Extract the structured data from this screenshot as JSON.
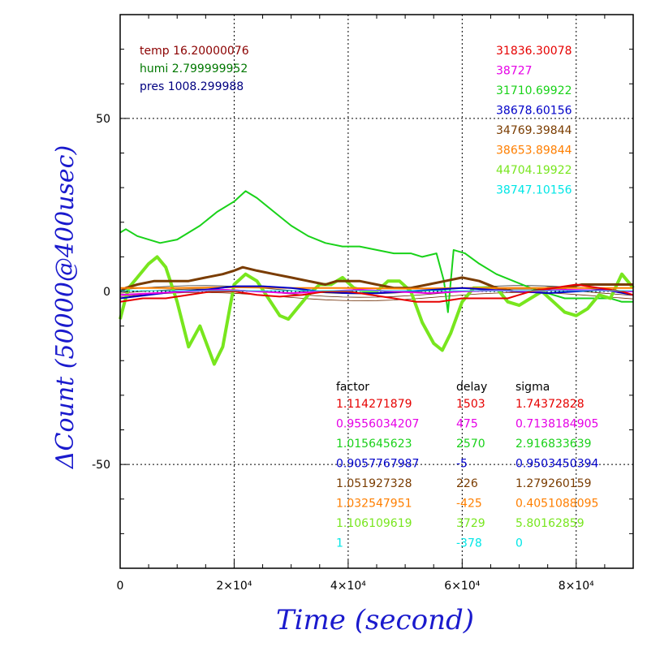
{
  "colors": {
    "red": "#e60000",
    "magenta": "#e600e6",
    "green": "#19d219",
    "blue": "#0000c8",
    "brown": "#7a3c00",
    "orange": "#ff7f00",
    "lime": "#78e61e",
    "cyan": "#00e6e6",
    "darkred": "#8b0000",
    "darkgreen": "#007800",
    "navy": "#000080",
    "axis_title": "#1a1acd"
  },
  "env": [
    {
      "label": "temp 16.20000076",
      "color": "#8b0000"
    },
    {
      "label": "humi 2.799999952",
      "color": "#007800"
    },
    {
      "label": "pres 1008.299988",
      "color": "#000080"
    }
  ],
  "means": [
    {
      "value": "31836.30078",
      "color": "#e60000"
    },
    {
      "value": "38727",
      "color": "#e600e6"
    },
    {
      "value": "31710.69922",
      "color": "#19d219"
    },
    {
      "value": "38678.60156",
      "color": "#0000c8"
    },
    {
      "value": "34769.39844",
      "color": "#7a3c00"
    },
    {
      "value": "38653.89844",
      "color": "#ff7f00"
    },
    {
      "value": "44704.19922",
      "color": "#78e61e"
    },
    {
      "value": "38747.10156",
      "color": "#00e6e6"
    }
  ],
  "table": {
    "headers": [
      "factor",
      "delay",
      "sigma"
    ],
    "rows": [
      {
        "factor": "1.114271879",
        "delay": "1503",
        "sigma": "1.74372828",
        "color": "#e60000"
      },
      {
        "factor": "0.9556034207",
        "delay": "475",
        "sigma": "0.7138184905",
        "color": "#e600e6"
      },
      {
        "factor": "1.015645623",
        "delay": "2570",
        "sigma": "2.916833639",
        "color": "#19d219"
      },
      {
        "factor": "0.9057767987",
        "delay": "-5",
        "sigma": "0.9503450394",
        "color": "#0000c8"
      },
      {
        "factor": "1.051927328",
        "delay": "226",
        "sigma": "1.279260159",
        "color": "#7a3c00"
      },
      {
        "factor": "1.032547951",
        "delay": "-425",
        "sigma": "0.4051088095",
        "color": "#ff7f00"
      },
      {
        "factor": "1.106109619",
        "delay": "3729",
        "sigma": "5.80162859",
        "color": "#78e61e"
      },
      {
        "factor": "1",
        "delay": "-378",
        "sigma": "0",
        "color": "#00e6e6"
      }
    ]
  },
  "chart_data": {
    "type": "line",
    "xlabel": "Time (second)",
    "ylabel": "ΔCount (50000@400usec)",
    "xlim": [
      0,
      90000
    ],
    "ylim": [
      -80,
      80
    ],
    "grid": "dotted",
    "x_ticks": [
      {
        "value": 0,
        "label": "0"
      },
      {
        "value": 20000,
        "label": "2×10⁴"
      },
      {
        "value": 40000,
        "label": "4×10⁴"
      },
      {
        "value": 60000,
        "label": "6×10⁴"
      },
      {
        "value": 80000,
        "label": "8×10⁴"
      }
    ],
    "y_ticks": [
      {
        "value": 50,
        "label": "50"
      },
      {
        "value": 0,
        "label": "0"
      },
      {
        "value": -50,
        "label": "-50"
      }
    ],
    "series": [
      {
        "key": "green",
        "color": "#19d219",
        "width": 2,
        "x": [
          0,
          1000,
          3000,
          7000,
          10000,
          14000,
          17000,
          20000,
          22000,
          24000,
          27000,
          30000,
          33000,
          36000,
          39000,
          42000,
          45000,
          48000,
          51000,
          53000,
          55500,
          56800,
          57500,
          58500,
          60500,
          63000,
          66000,
          69000,
          72000,
          74000,
          76000,
          78000,
          80000,
          82000,
          84000,
          86000,
          88000,
          90000
        ],
        "y": [
          17,
          18,
          16,
          14,
          15,
          19,
          23,
          26,
          29,
          27,
          23,
          19,
          16,
          14,
          13,
          13,
          12,
          11,
          11,
          10,
          11,
          3,
          -6,
          12,
          11,
          8,
          5,
          3,
          1,
          0,
          -1,
          -2,
          -2,
          -2,
          -2,
          -2,
          -3,
          -3
        ]
      },
      {
        "key": "lime",
        "color": "#78e61e",
        "width": 4,
        "x": [
          0,
          800,
          1500,
          3000,
          5000,
          6500,
          8000,
          10000,
          12000,
          14000,
          16500,
          18000,
          20000,
          22000,
          24000,
          26000,
          28000,
          29500,
          31000,
          33000,
          35000,
          37000,
          39000,
          41000,
          43000,
          45000,
          47000,
          49000,
          51000,
          53000,
          55000,
          56500,
          58000,
          60000,
          62000,
          64000,
          66000,
          68000,
          70000,
          72000,
          74000,
          76000,
          78000,
          80000,
          82000,
          84000,
          86000,
          88000,
          90000
        ],
        "y": [
          -8,
          -3,
          1,
          4,
          8,
          10,
          7,
          -3,
          -16,
          -10,
          -21,
          -16,
          2,
          5,
          3,
          -2,
          -7,
          -8,
          -5,
          -1,
          2,
          2,
          4,
          1,
          0,
          0,
          3,
          3,
          0,
          -9,
          -15,
          -17,
          -12,
          -3,
          1,
          1,
          1,
          -3,
          -4,
          -2,
          0,
          -3,
          -6,
          -7,
          -5,
          -1,
          -2,
          5,
          1
        ]
      },
      {
        "key": "brown",
        "color": "#7a3c00",
        "width": 3,
        "x": [
          0,
          1000,
          3000,
          6000,
          9000,
          12000,
          15000,
          18000,
          20000,
          21500,
          24000,
          27000,
          30000,
          33000,
          36000,
          38000,
          40000,
          42000,
          45000,
          48000,
          51000,
          54000,
          57000,
          60000,
          63000,
          66000,
          69000,
          72000,
          75000,
          78000,
          81000,
          84000,
          87000,
          90000
        ],
        "y": [
          0,
          1,
          2,
          3,
          3,
          3,
          4,
          5,
          6,
          7,
          6,
          5,
          4,
          3,
          2,
          3,
          3,
          3,
          2,
          1,
          1,
          2,
          3,
          4,
          3,
          1,
          0,
          0,
          1,
          1,
          2,
          2,
          2,
          2
        ]
      },
      {
        "key": "orange",
        "color": "#ff7f00",
        "width": 2,
        "x": [
          0,
          10000,
          20000,
          30000,
          40000,
          50000,
          60000,
          70000,
          80000,
          90000
        ],
        "y": [
          1,
          1,
          1.2,
          1,
          1,
          0.8,
          1,
          1,
          1,
          1
        ]
      },
      {
        "key": "blue",
        "color": "#0000c8",
        "width": 2,
        "x": [
          0,
          5000,
          10000,
          15000,
          20000,
          25000,
          30000,
          35000,
          40000,
          45000,
          50000,
          55000,
          60000,
          65000,
          70000,
          75000,
          80000,
          85000,
          90000
        ],
        "y": [
          -2,
          -1,
          0,
          0.5,
          1.5,
          1.5,
          1,
          0,
          -0.5,
          -0.5,
          0,
          0.5,
          1,
          0.5,
          0,
          -0.5,
          0,
          0.5,
          -1
        ]
      },
      {
        "key": "magenta",
        "color": "#e600e6",
        "width": 2,
        "x": [
          0,
          6000,
          12000,
          18000,
          24000,
          30000,
          36000,
          42000,
          48000,
          54000,
          60000,
          66000,
          72000,
          78000,
          84000,
          90000
        ],
        "y": [
          -1,
          -0.5,
          0,
          0.5,
          0,
          -0.5,
          0,
          0.5,
          0,
          -0.5,
          0,
          0.3,
          0,
          0.5,
          0.3,
          0
        ]
      },
      {
        "key": "red",
        "color": "#e60000",
        "width": 2,
        "x": [
          0,
          4000,
          8000,
          12000,
          16000,
          20000,
          24000,
          28000,
          32000,
          36000,
          40000,
          44000,
          48000,
          52000,
          56000,
          60000,
          64000,
          68000,
          72000,
          76000,
          80000,
          84000,
          88000,
          90000
        ],
        "y": [
          -3,
          -2,
          -2,
          -1,
          0,
          0,
          -1,
          -1.5,
          -1,
          0,
          0,
          -1,
          -2,
          -3,
          -3,
          -2,
          -2,
          -2,
          0,
          1,
          2,
          1,
          0,
          -1
        ]
      },
      {
        "key": "cyan",
        "color": "#00e6e6",
        "width": 1,
        "x": [
          0,
          30000,
          60000,
          90000
        ],
        "y": [
          0.2,
          0.2,
          0.2,
          0.2
        ]
      }
    ]
  }
}
